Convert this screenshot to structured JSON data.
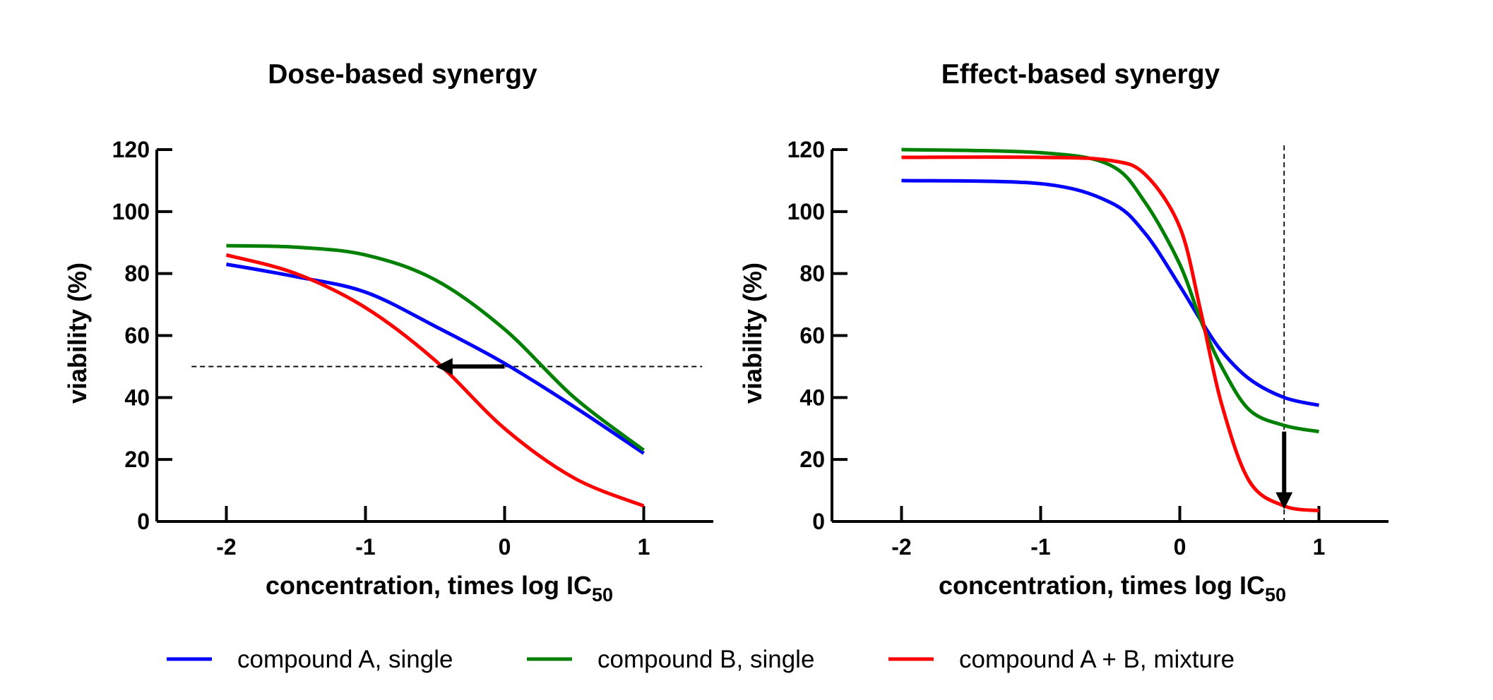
{
  "legend": {
    "placement": "bottom",
    "entries": [
      {
        "label": "compound A, single",
        "color": "#0000ff"
      },
      {
        "label": "compound B, single",
        "color": "#008000"
      },
      {
        "label": "compound A  + B, mixture",
        "color": "#ff0000"
      }
    ]
  },
  "chart_data": [
    {
      "type": "line",
      "title": "Dose-based synergy",
      "xlabel": "concentration, times log IC",
      "xlabel_subscript": "50",
      "ylabel": "viability (%)",
      "xlim": [
        -2.5,
        1.5
      ],
      "ylim": [
        0,
        120
      ],
      "xticks": [
        -2,
        -1,
        0,
        1
      ],
      "yticks": [
        0,
        20,
        40,
        60,
        80,
        100,
        120
      ],
      "grid": false,
      "series": [
        {
          "name": "compound A, single",
          "color": "#0000ff",
          "x": [
            -2,
            -1.5,
            -1,
            -0.5,
            0,
            0.5,
            1
          ],
          "y": [
            83,
            79,
            74,
            63,
            51,
            37,
            22
          ]
        },
        {
          "name": "compound B, single",
          "color": "#008000",
          "x": [
            -2,
            -1.5,
            -1,
            -0.5,
            0,
            0.5,
            1
          ],
          "y": [
            89,
            88.5,
            86,
            78,
            62,
            40,
            23
          ]
        },
        {
          "name": "compound A  + B, mixture",
          "color": "#ff0000",
          "x": [
            -2,
            -1.5,
            -1,
            -0.5,
            0,
            0.5,
            1
          ],
          "y": [
            86,
            80,
            69,
            52,
            30,
            14,
            5
          ]
        }
      ],
      "annotations": [
        {
          "type": "hline",
          "y": 50,
          "style": "dashed"
        },
        {
          "type": "arrow",
          "from": [
            0,
            50
          ],
          "to": [
            -0.45,
            50
          ]
        }
      ]
    },
    {
      "type": "line",
      "title": "Effect-based synergy",
      "xlabel": "concentration, times log IC",
      "xlabel_subscript": "50",
      "ylabel": "viability (%)",
      "xlim": [
        -2.5,
        1.5
      ],
      "ylim": [
        0,
        120
      ],
      "xticks": [
        -2,
        -1,
        0,
        1
      ],
      "yticks": [
        0,
        20,
        40,
        60,
        80,
        100,
        120
      ],
      "grid": false,
      "series": [
        {
          "name": "compound A, single",
          "color": "#0000ff",
          "x": [
            -2,
            -1,
            -0.5,
            -0.25,
            0,
            0.15,
            0.3,
            0.5,
            0.75,
            1
          ],
          "y": [
            110,
            109,
            103,
            93,
            76,
            65,
            55,
            46,
            40,
            37.5
          ]
        },
        {
          "name": "compound B, single",
          "color": "#008000",
          "x": [
            -2,
            -1,
            -0.5,
            -0.25,
            0,
            0.15,
            0.3,
            0.5,
            0.75,
            1
          ],
          "y": [
            120,
            119,
            115,
            103,
            83,
            65,
            50,
            36,
            31,
            29
          ]
        },
        {
          "name": "compound A  + B, mixture",
          "color": "#ff0000",
          "x": [
            -2,
            -1,
            -0.5,
            -0.25,
            0,
            0.15,
            0.3,
            0.5,
            0.75,
            1
          ],
          "y": [
            117.5,
            117.5,
            116.5,
            112,
            95,
            68,
            38,
            13,
            5,
            3.5
          ]
        }
      ],
      "annotations": [
        {
          "type": "vline",
          "x": 0.75,
          "style": "dashed"
        },
        {
          "type": "arrow",
          "from": [
            0.75,
            29
          ],
          "to": [
            0.75,
            6
          ]
        }
      ]
    }
  ]
}
